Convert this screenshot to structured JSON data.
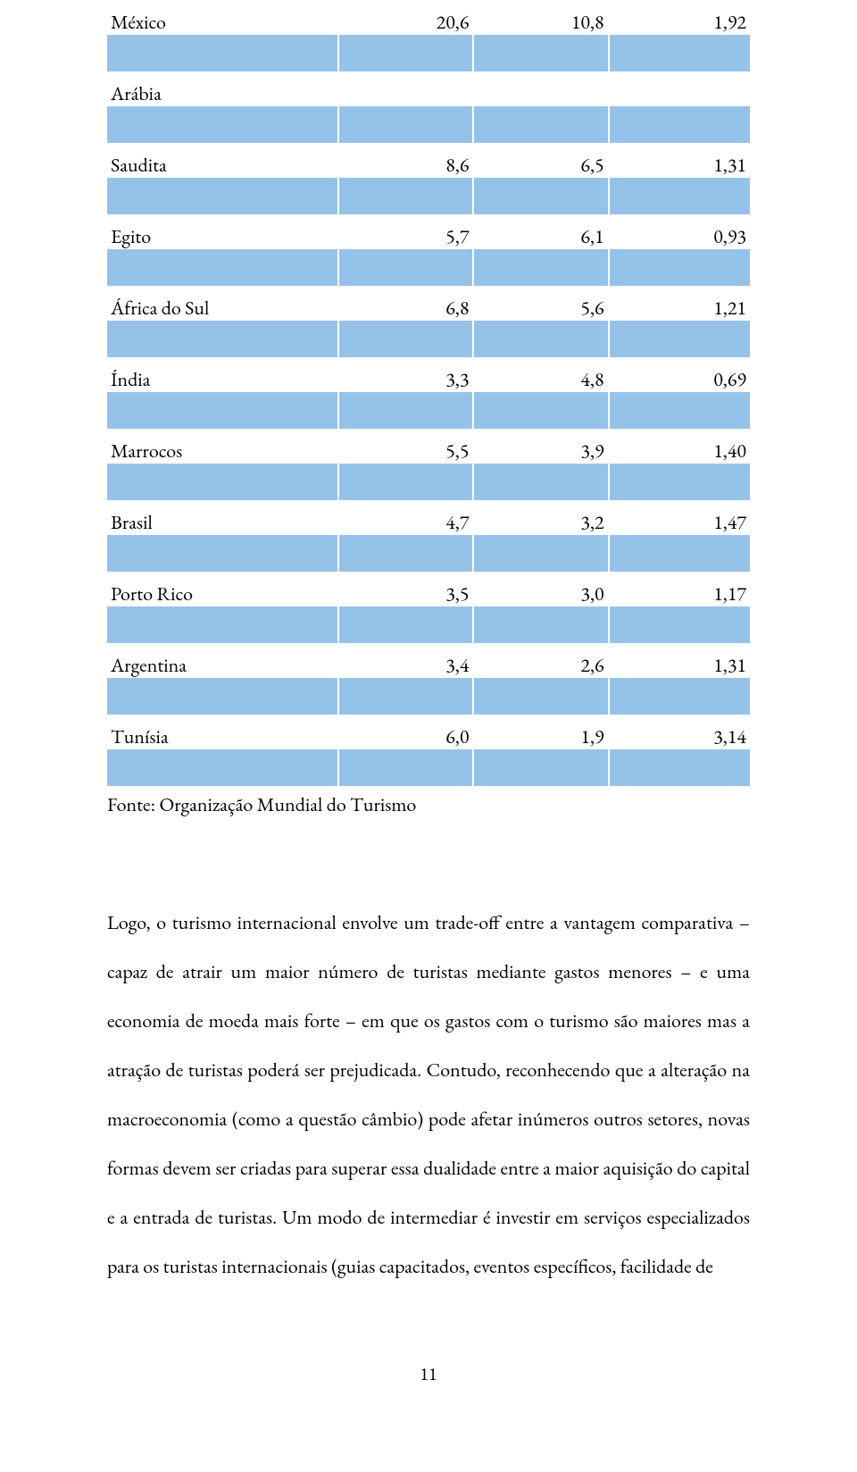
{
  "table": {
    "highlight_color": "#95c2e9",
    "border_color": "#ffffff",
    "rows": [
      {
        "c1": "México",
        "c2": "20,6",
        "c3": "10,8",
        "c4": "1,92"
      },
      {
        "c1": "Arábia",
        "c2": "",
        "c3": "",
        "c4": ""
      },
      {
        "c1": "Saudita",
        "c2": "8,6",
        "c3": "6,5",
        "c4": "1,31"
      },
      {
        "c1": "Egito",
        "c2": "5,7",
        "c3": "6,1",
        "c4": "0,93"
      },
      {
        "c1": "África do Sul",
        "c2": "6,8",
        "c3": "5,6",
        "c4": "1,21"
      },
      {
        "c1": "Índia",
        "c2": "3,3",
        "c3": "4,8",
        "c4": "0,69"
      },
      {
        "c1": "Marrocos",
        "c2": "5,5",
        "c3": "3,9",
        "c4": "1,40"
      },
      {
        "c1": "Brasil",
        "c2": "4,7",
        "c3": "3,2",
        "c4": "1,47"
      },
      {
        "c1": "Porto Rico",
        "c2": "3,5",
        "c3": "3,0",
        "c4": "1,17"
      },
      {
        "c1": "Argentina",
        "c2": "3,4",
        "c3": "2,6",
        "c4": "1,31"
      },
      {
        "c1": "Tunísia",
        "c2": "6,0",
        "c3": "1,9",
        "c4": "3,14"
      }
    ],
    "source": "Fonte: Organização Mundial do Turismo"
  },
  "body": {
    "text": "Logo, o turismo internacional envolve um trade-off entre a vantagem comparativa – capaz de atrair um maior número de turistas mediante gastos menores – e uma economia de moeda mais forte – em que os gastos com o turismo são maiores mas a atração de turistas poderá ser prejudicada. Contudo, reconhecendo que a alteração na macroeconomia (como a questão câmbio) pode afetar inúmeros outros setores, novas formas devem ser criadas para superar essa dualidade entre a maior aquisição do capital e a entrada de turistas. Um modo de intermediar é investir em serviços especializados para os turistas internacionais (guias capacitados, eventos específicos, facilidade de"
  },
  "page_number": "11"
}
